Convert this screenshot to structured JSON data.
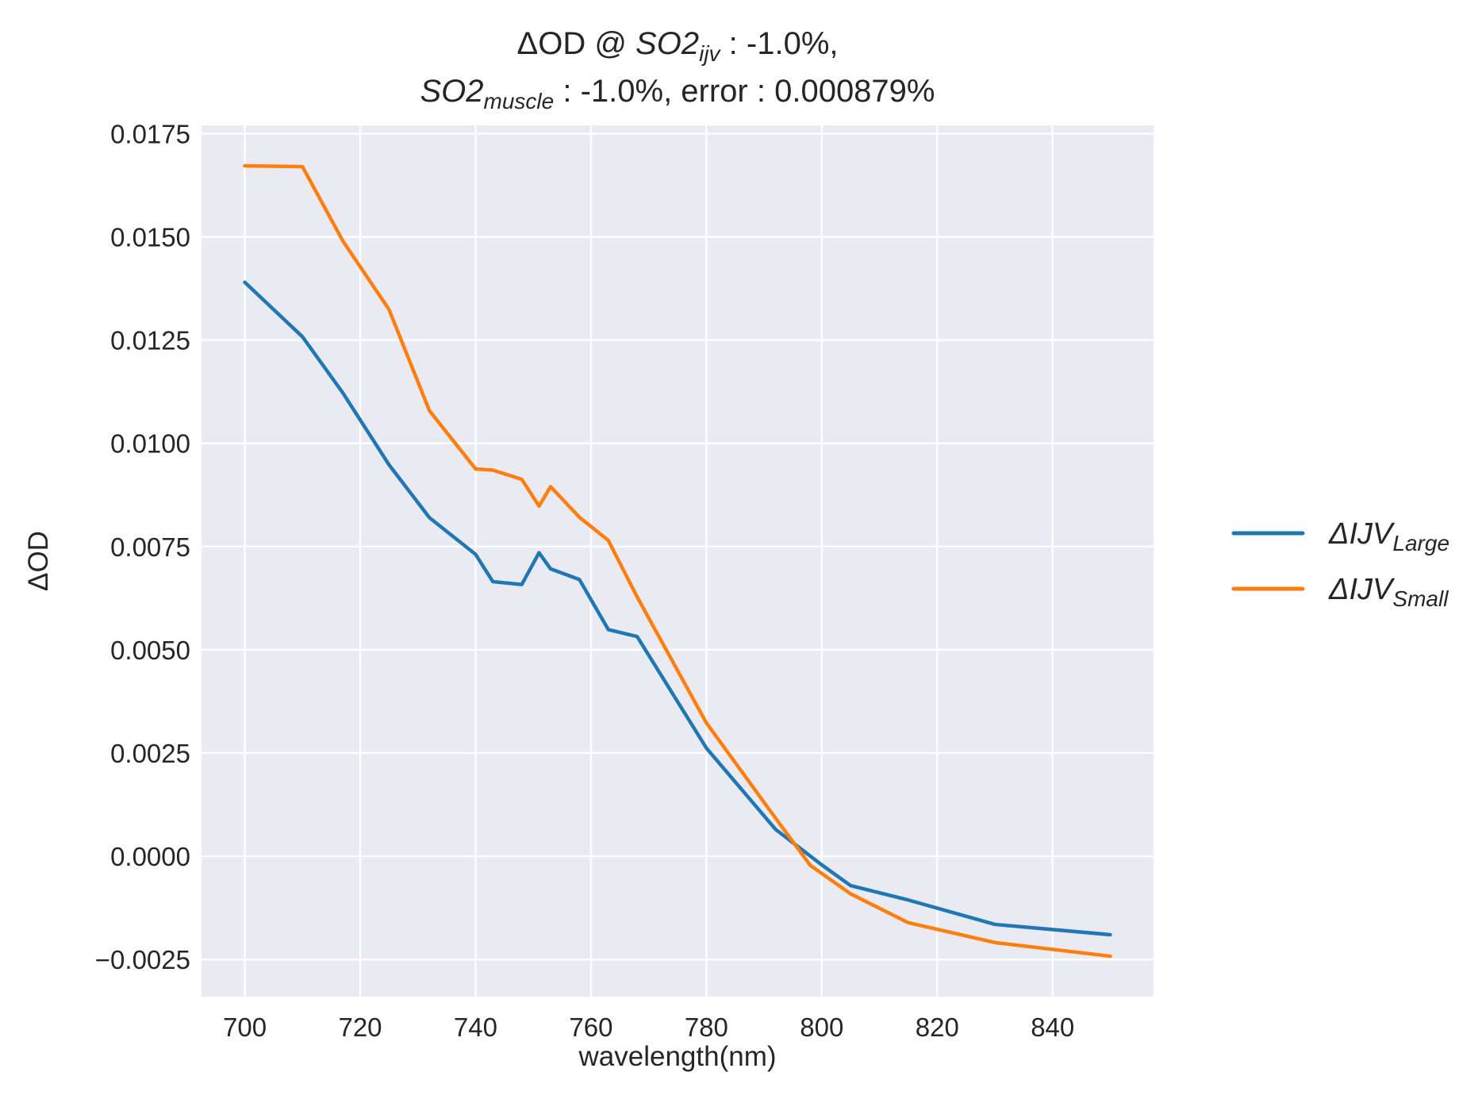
{
  "chart_data": {
    "type": "line",
    "title": {
      "line1": [
        {
          "text": "ΔOD @ ",
          "style": "normal"
        },
        {
          "text": "SO2",
          "style": "italic"
        },
        {
          "text": "ijv",
          "style": "italic-sub"
        },
        {
          "text": " : -1.0%,",
          "style": "normal"
        }
      ],
      "line2": [
        {
          "text": "SO2",
          "style": "italic"
        },
        {
          "text": "muscle",
          "style": "italic-sub"
        },
        {
          "text": " : -1.0%, error : 0.000879%",
          "style": "normal"
        }
      ]
    },
    "xlabel": "wavelength(nm)",
    "ylabel": "ΔOD",
    "xlim": [
      692.5,
      857.5
    ],
    "ylim": [
      -0.0034,
      0.0177
    ],
    "xticks": [
      700,
      720,
      740,
      760,
      780,
      800,
      820,
      840
    ],
    "xtick_labels": [
      "700",
      "720",
      "740",
      "760",
      "780",
      "800",
      "820",
      "840"
    ],
    "yticks": [
      -0.0025,
      0.0,
      0.0025,
      0.005,
      0.0075,
      0.01,
      0.0125,
      0.015,
      0.0175
    ],
    "ytick_labels": [
      "−0.0025",
      "0.0000",
      "0.0025",
      "0.0050",
      "0.0075",
      "0.0100",
      "0.0125",
      "0.0150",
      "0.0175"
    ],
    "grid": true,
    "legend_position": "right-outside",
    "series": [
      {
        "legend": {
          "base": "ΔIJV",
          "sub": "Large"
        },
        "color": "#1f77b4",
        "x": [
          700,
          710,
          717,
          725,
          732,
          740,
          743,
          748,
          751,
          753,
          758,
          763,
          768,
          780,
          792,
          800,
          805,
          815,
          830,
          850
        ],
        "y": [
          0.0139,
          0.01258,
          0.01122,
          0.00948,
          0.0082,
          0.00731,
          0.00665,
          0.00658,
          0.00735,
          0.00696,
          0.0067,
          0.00549,
          0.00532,
          0.00262,
          0.00065,
          -0.00021,
          -0.00071,
          -0.00106,
          -0.00165,
          -0.0019
        ]
      },
      {
        "legend": {
          "base": "ΔIJV",
          "sub": "Small"
        },
        "color": "#ff7f0e",
        "x": [
          700,
          710,
          717,
          725,
          732,
          740,
          743,
          748,
          751,
          753,
          758,
          763,
          768,
          780,
          792,
          798,
          805,
          815,
          830,
          850
        ],
        "y": [
          0.01672,
          0.0167,
          0.0149,
          0.01324,
          0.01079,
          0.00938,
          0.00935,
          0.00913,
          0.00848,
          0.00895,
          0.00821,
          0.00765,
          0.00628,
          0.00323,
          0.00092,
          -0.00022,
          -0.00091,
          -0.00161,
          -0.00209,
          -0.00242
        ]
      }
    ]
  }
}
